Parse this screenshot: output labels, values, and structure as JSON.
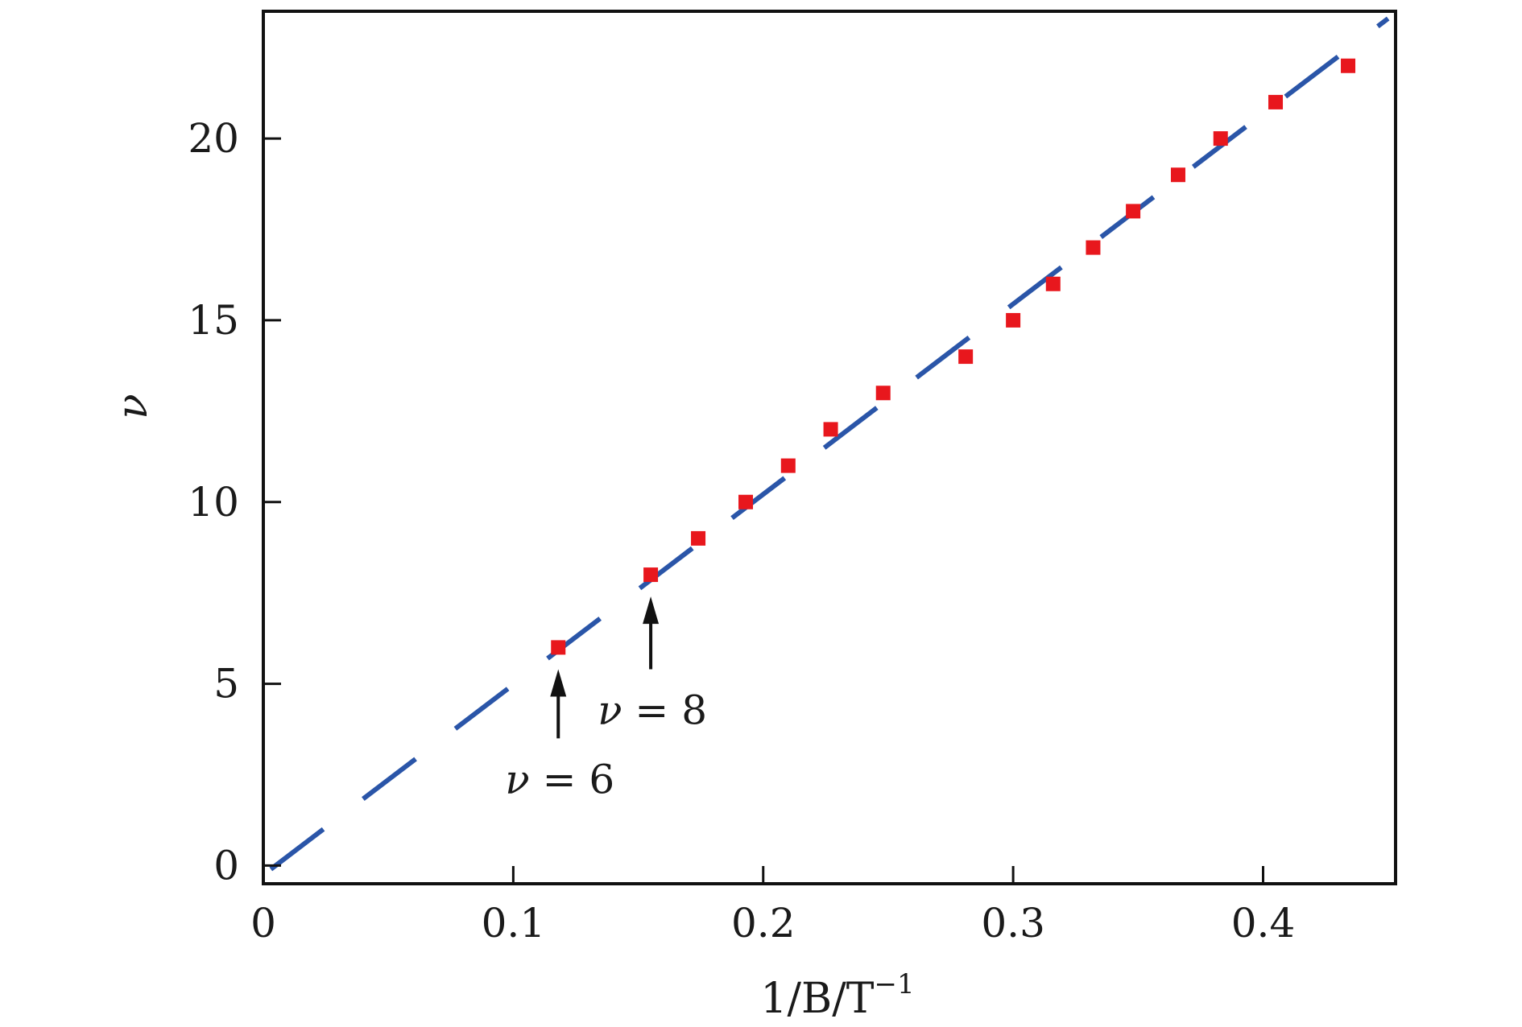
{
  "chart_data": {
    "type": "scatter",
    "title": "",
    "xlabel": "1/B/T",
    "xlabel_exponent": "−1",
    "ylabel": "ν",
    "xlim": [
      0,
      0.453
    ],
    "ylim": [
      -0.5,
      23.5
    ],
    "x_ticks": [
      0,
      0.1,
      0.2,
      0.3,
      0.4
    ],
    "x_tick_labels": [
      "0",
      "0.1",
      "0.2",
      "0.3",
      "0.4"
    ],
    "y_ticks": [
      0,
      5,
      10,
      15,
      20
    ],
    "y_tick_labels": [
      "0",
      "5",
      "10",
      "15",
      "20"
    ],
    "grid": false,
    "colors": {
      "points": "#e8171d",
      "fit_line": "#2a55a8",
      "frame": "#111111"
    },
    "series": [
      {
        "kind": "points",
        "marker": "square",
        "x": [
          0.118,
          0.155,
          0.174,
          0.193,
          0.21,
          0.227,
          0.248,
          0.281,
          0.3,
          0.316,
          0.332,
          0.348,
          0.366,
          0.383,
          0.405,
          0.434
        ],
        "y": [
          6,
          8,
          9,
          10,
          11,
          12,
          13,
          14,
          15,
          16,
          17,
          18,
          19,
          20,
          21,
          22
        ]
      },
      {
        "kind": "fit_line",
        "style": "dashed",
        "x": [
          0.003,
          0.45
        ],
        "y": [
          -0.1,
          23.3
        ]
      }
    ],
    "annotations": [
      {
        "prefix": "ν",
        "text": " = 6",
        "x": 0.118,
        "y_tip": 5.4,
        "y_tail": 3.5
      },
      {
        "prefix": "ν",
        "text": " = 8",
        "x": 0.155,
        "y_tip": 7.4,
        "y_tail": 5.4
      }
    ]
  }
}
